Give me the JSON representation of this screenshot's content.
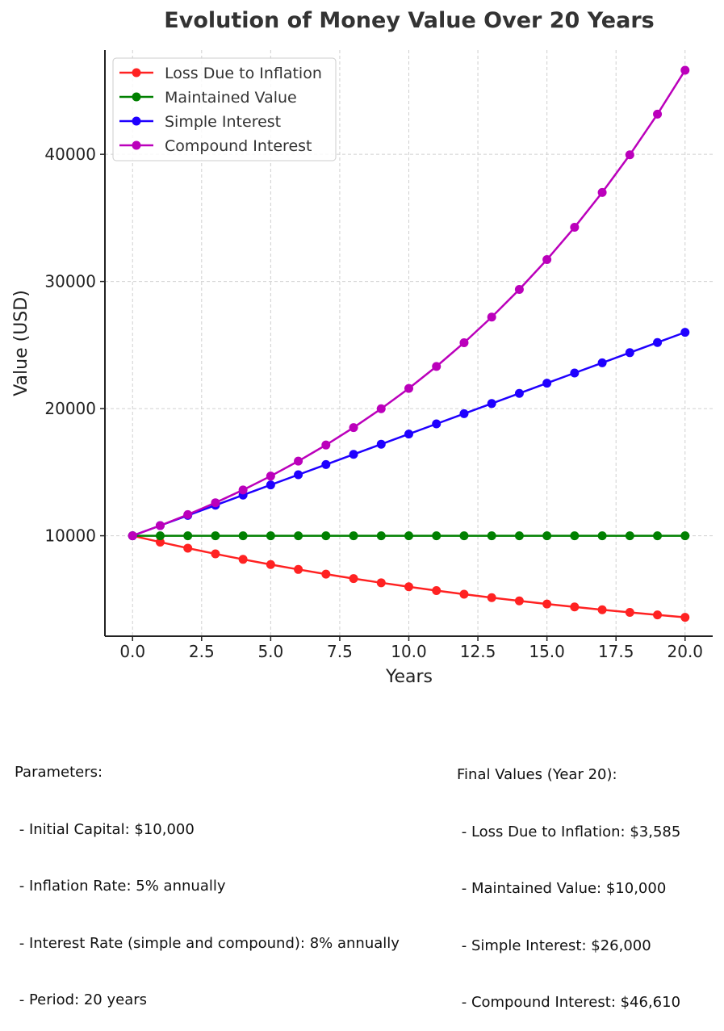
{
  "chart_data": {
    "type": "line",
    "title": "Evolution of Money Value Over 20 Years",
    "xlabel": "Years",
    "ylabel": "Value (USD)",
    "xlim": [
      -1,
      21
    ],
    "ylim": [
      2100,
      48200
    ],
    "x_ticks": [
      "0.0",
      "2.5",
      "5.0",
      "7.5",
      "10.0",
      "12.5",
      "15.0",
      "17.5",
      "20.0"
    ],
    "x_tick_values": [
      0,
      2.5,
      5,
      7.5,
      10,
      12.5,
      15,
      17.5,
      20
    ],
    "y_ticks": [
      "10000",
      "20000",
      "30000",
      "40000"
    ],
    "y_tick_values": [
      10000,
      20000,
      30000,
      40000
    ],
    "grid": true,
    "legend_position": "upper-left",
    "x": [
      0,
      1,
      2,
      3,
      4,
      5,
      6,
      7,
      8,
      9,
      10,
      11,
      12,
      13,
      14,
      15,
      16,
      17,
      18,
      19,
      20
    ],
    "series": [
      {
        "name": "Loss Due to Inflation",
        "color": "#ff2222",
        "values": [
          10000,
          9500,
          9025,
          8574,
          8145,
          7738,
          7351,
          6983,
          6634,
          6302,
          5987,
          5688,
          5404,
          5133,
          4877,
          4633,
          4401,
          4181,
          3972,
          3774,
          3585
        ]
      },
      {
        "name": "Maintained Value",
        "color": "#008000",
        "values": [
          10000,
          10000,
          10000,
          10000,
          10000,
          10000,
          10000,
          10000,
          10000,
          10000,
          10000,
          10000,
          10000,
          10000,
          10000,
          10000,
          10000,
          10000,
          10000,
          10000,
          10000
        ]
      },
      {
        "name": "Simple Interest",
        "color": "#1f00ff",
        "values": [
          10000,
          10800,
          11600,
          12400,
          13200,
          14000,
          14800,
          15600,
          16400,
          17200,
          18000,
          18800,
          19600,
          20400,
          21200,
          22000,
          22800,
          23600,
          24400,
          25200,
          26000
        ]
      },
      {
        "name": "Compound Interest",
        "color": "#bb00bb",
        "values": [
          10000,
          10800,
          11664,
          12597,
          13605,
          14693,
          15869,
          17138,
          18509,
          19990,
          21589,
          23316,
          25182,
          27196,
          29372,
          31722,
          34259,
          37000,
          39960,
          43157,
          46610
        ]
      }
    ]
  },
  "notes": {
    "parameters": [
      "Parameters:",
      " - Initial Capital: $10,000",
      " - Inflation Rate: 5% annually",
      " - Interest Rate (simple and compound): 8% annually",
      " - Period: 20 years"
    ],
    "final_values": [
      "Final Values (Year 20):",
      " - Loss Due to Inflation: $3,585",
      " - Maintained Value: $10,000",
      " - Simple Interest: $26,000",
      " - Compound Interest: $46,610"
    ]
  }
}
